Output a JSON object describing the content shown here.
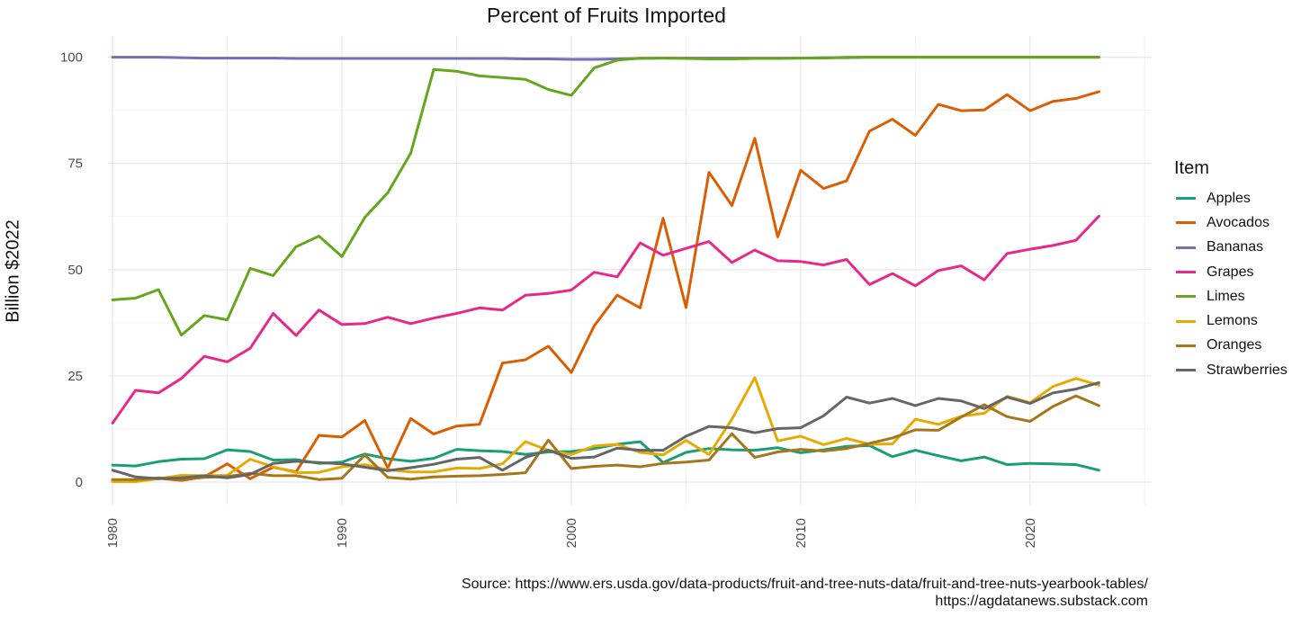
{
  "chart_data": {
    "type": "line",
    "title": "Percent of Fruits Imported",
    "xlabel": "",
    "ylabel": "Billion $2022",
    "legend_title": "Item",
    "legend_position": "right",
    "xlim": [
      1979.8,
      2025.3
    ],
    "ylim": [
      -5.5,
      105
    ],
    "x_ticks": [
      1980,
      1990,
      2000,
      2010,
      2020
    ],
    "y_ticks": [
      0,
      25,
      50,
      75,
      100
    ],
    "grid": true,
    "x": [
      1980,
      1981,
      1982,
      1983,
      1984,
      1985,
      1986,
      1987,
      1988,
      1989,
      1990,
      1991,
      1992,
      1993,
      1994,
      1995,
      1996,
      1997,
      1998,
      1999,
      2000,
      2001,
      2002,
      2003,
      2004,
      2005,
      2006,
      2007,
      2008,
      2009,
      2010,
      2011,
      2012,
      2013,
      2014,
      2015,
      2016,
      2017,
      2018,
      2019,
      2020,
      2021,
      2022,
      2023
    ],
    "series": [
      {
        "name": "Apples",
        "color": "#1b9e77",
        "values": [
          4.0,
          3.8,
          4.8,
          5.4,
          5.5,
          7.6,
          7.2,
          5.2,
          5.3,
          4.4,
          4.7,
          6.6,
          5.5,
          4.9,
          5.6,
          7.7,
          7.4,
          7.2,
          6.5,
          7.1,
          7.2,
          7.9,
          8.9,
          9.5,
          4.6,
          7.0,
          7.9,
          7.6,
          7.5,
          8.1,
          6.9,
          7.6,
          8.4,
          8.6,
          6.0,
          7.5,
          6.2,
          5.0,
          5.9,
          4.1,
          4.4,
          4.3,
          4.1,
          2.8
        ]
      },
      {
        "name": "Avocados",
        "color": "#d95f02",
        "values": [
          0.5,
          0.5,
          0.9,
          0.4,
          1.2,
          4.3,
          0.8,
          3.5,
          2.4,
          11.0,
          10.6,
          14.5,
          3.3,
          15.0,
          11.3,
          13.2,
          13.6,
          28.0,
          28.8,
          32.0,
          25.8,
          36.8,
          44.0,
          41.0,
          62.1,
          41.1,
          72.9,
          65.1,
          80.9,
          57.7,
          73.4,
          69.1,
          70.9,
          82.6,
          85.4,
          81.6,
          88.9,
          87.4,
          87.6,
          91.2,
          87.4,
          89.6,
          90.3,
          91.9
        ]
      },
      {
        "name": "Bananas",
        "color": "#7570b3",
        "values": [
          100.0,
          100.0,
          100.0,
          99.9,
          99.8,
          99.8,
          99.8,
          99.8,
          99.7,
          99.7,
          99.7,
          99.7,
          99.7,
          99.7,
          99.7,
          99.7,
          99.7,
          99.7,
          99.6,
          99.6,
          99.5,
          99.5,
          99.6,
          99.7,
          99.8,
          99.8,
          99.8,
          99.8,
          99.8,
          99.8,
          99.8,
          99.9,
          99.9,
          100.0,
          100.0,
          100.0,
          100.0,
          100.0,
          100.0,
          100.0,
          100.0,
          100.0,
          100.0,
          100.0
        ]
      },
      {
        "name": "Grapes",
        "color": "#e7298a",
        "values": [
          13.9,
          21.6,
          21.0,
          24.4,
          29.6,
          28.3,
          31.5,
          39.7,
          34.5,
          40.5,
          37.1,
          37.3,
          38.8,
          37.3,
          38.6,
          39.7,
          41.0,
          40.5,
          44.0,
          44.4,
          45.2,
          49.4,
          48.3,
          56.3,
          53.4,
          55.0,
          56.6,
          51.7,
          54.6,
          52.1,
          51.9,
          51.1,
          52.4,
          46.5,
          49.1,
          46.2,
          49.8,
          50.9,
          47.6,
          53.8,
          54.8,
          55.7,
          56.9,
          62.6
        ]
      },
      {
        "name": "Limes",
        "color": "#66a61e",
        "values": [
          42.9,
          43.3,
          45.3,
          34.6,
          39.2,
          38.2,
          50.3,
          48.6,
          55.4,
          57.9,
          53.1,
          62.3,
          68.1,
          77.4,
          97.1,
          96.7,
          95.6,
          95.2,
          94.8,
          92.4,
          91.0,
          97.5,
          99.3,
          99.8,
          99.8,
          99.7,
          99.6,
          99.6,
          99.7,
          99.7,
          99.8,
          99.8,
          100.0,
          100.0,
          100.0,
          100.0,
          100.0,
          100.0,
          100.0,
          100.0,
          100.0,
          100.0,
          100.0,
          100.0
        ]
      },
      {
        "name": "Lemons",
        "color": "#e6ab02",
        "values": [
          0.1,
          0.1,
          0.8,
          1.6,
          1.5,
          1.6,
          5.4,
          3.6,
          2.2,
          2.3,
          3.6,
          4.1,
          2.9,
          2.4,
          2.4,
          3.3,
          3.2,
          4.3,
          9.5,
          7.5,
          6.5,
          8.5,
          8.9,
          7.0,
          6.4,
          9.8,
          6.5,
          14.8,
          24.6,
          9.7,
          10.8,
          8.8,
          10.3,
          8.9,
          9.0,
          14.8,
          13.6,
          15.5,
          16.2,
          20.2,
          18.7,
          22.5,
          24.4,
          22.8
        ]
      },
      {
        "name": "Oranges",
        "color": "#a6761d",
        "values": [
          0.6,
          0.6,
          1.0,
          0.7,
          1.1,
          1.3,
          2.1,
          1.5,
          1.5,
          0.6,
          0.9,
          6.4,
          1.1,
          0.7,
          1.2,
          1.4,
          1.5,
          1.8,
          2.2,
          9.9,
          3.2,
          3.7,
          4.0,
          3.6,
          4.4,
          4.7,
          5.2,
          11.4,
          5.8,
          7.1,
          7.7,
          7.3,
          7.9,
          9.1,
          10.4,
          12.3,
          12.2,
          15.3,
          18.2,
          15.4,
          14.3,
          17.8,
          20.3,
          18.0
        ]
      },
      {
        "name": "Strawberries",
        "color": "#666666",
        "values": [
          2.8,
          1.2,
          0.8,
          1.0,
          1.5,
          1.0,
          1.8,
          4.4,
          4.9,
          4.6,
          4.3,
          3.5,
          2.7,
          3.4,
          4.2,
          5.4,
          5.8,
          2.8,
          5.8,
          7.5,
          5.6,
          5.9,
          8.0,
          7.5,
          7.5,
          10.8,
          13.1,
          12.8,
          11.6,
          12.6,
          12.8,
          15.6,
          20.0,
          18.6,
          19.7,
          18.0,
          19.7,
          19.1,
          17.3,
          20.0,
          18.5,
          21.0,
          21.9,
          23.4
        ]
      }
    ]
  },
  "source": {
    "line1": "Source: https://www.ers.usda.gov/data-products/fruit-and-tree-nuts-data/fruit-and-tree-nuts-yearbook-tables/",
    "line2": "https://agdatanews.substack.com"
  }
}
